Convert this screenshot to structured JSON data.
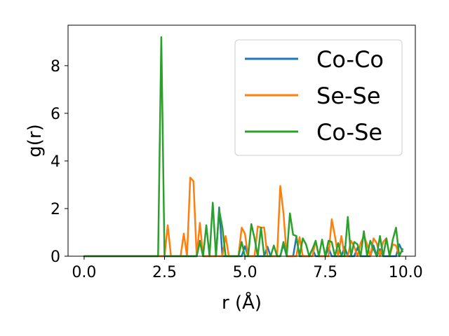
{
  "chart_data": {
    "type": "line",
    "xlabel": "r (Å)",
    "ylabel": "g(r)",
    "xlim": [
      -0.5,
      10.3
    ],
    "ylim": [
      0,
      9.7
    ],
    "xticks": [
      0.0,
      2.5,
      5.0,
      7.5,
      10.0
    ],
    "xtick_labels": [
      "0.0",
      "2.5",
      "5.0",
      "7.5",
      "10.0"
    ],
    "yticks": [
      0,
      2,
      4,
      6,
      8
    ],
    "ytick_labels": [
      "0",
      "2",
      "4",
      "6",
      "8"
    ],
    "grid": false,
    "legend_position": "top-right",
    "series": [
      {
        "name": "Co-Co",
        "color": "#1f77b4",
        "x": [
          0.0,
          3.5,
          3.6,
          3.7,
          4.1,
          4.2,
          4.3,
          4.4,
          4.9,
          5.0,
          5.1,
          5.6,
          5.7,
          5.8,
          6.1,
          6.2,
          6.3,
          6.5,
          6.6,
          6.7,
          7.0,
          7.1,
          7.2,
          7.5,
          7.6,
          7.7,
          8.0,
          8.1,
          8.2,
          8.4,
          8.5,
          8.6,
          8.9,
          9.0,
          9.1,
          9.2,
          9.3,
          9.4,
          9.7,
          9.8,
          9.9
        ],
        "y": [
          0.0,
          0.0,
          0.65,
          0.0,
          0.0,
          2.05,
          0.0,
          0.0,
          0.0,
          0.42,
          0.0,
          0.0,
          0.4,
          0.0,
          0.0,
          0.5,
          0.0,
          0.0,
          0.8,
          0.0,
          0.0,
          0.3,
          0.0,
          0.0,
          0.35,
          0.0,
          0.0,
          0.4,
          0.0,
          0.0,
          0.35,
          0.0,
          0.0,
          0.45,
          0.0,
          0.3,
          0.0,
          0.0,
          0.0,
          0.5,
          0.2
        ]
      },
      {
        "name": "Se-Se",
        "color": "#ff7f0e",
        "x": [
          0.0,
          2.5,
          2.6,
          2.7,
          3.0,
          3.1,
          3.2,
          3.3,
          3.4,
          3.5,
          3.6,
          3.7,
          4.3,
          4.4,
          4.5,
          4.8,
          4.9,
          5.0,
          5.1,
          5.3,
          5.4,
          5.5,
          5.6,
          5.7,
          5.8,
          6.0,
          6.1,
          6.2,
          6.3,
          6.6,
          6.7,
          6.8,
          7.1,
          7.2,
          7.3,
          7.6,
          7.7,
          7.8,
          7.9,
          8.0,
          8.1,
          8.2,
          8.3,
          8.4,
          8.5,
          8.6,
          8.7,
          8.8,
          8.9,
          9.0,
          9.1,
          9.2,
          9.3,
          9.4,
          9.5,
          9.6,
          9.7,
          9.8,
          9.9
        ],
        "y": [
          0.0,
          0.0,
          1.3,
          0.0,
          0.0,
          0.95,
          0.0,
          3.3,
          3.15,
          0.0,
          1.4,
          0.0,
          0.0,
          0.85,
          0.0,
          0.0,
          1.2,
          0.95,
          0.0,
          0.0,
          1.25,
          1.2,
          1.2,
          0.0,
          0.0,
          0.0,
          2.95,
          1.8,
          0.0,
          0.0,
          0.8,
          0.0,
          0.0,
          0.65,
          0.0,
          0.0,
          1.55,
          0.85,
          0.0,
          0.85,
          0.0,
          0.0,
          0.65,
          0.4,
          0.0,
          0.55,
          0.85,
          0.5,
          0.0,
          0.75,
          0.55,
          0.0,
          0.6,
          0.75,
          0.0,
          0.5,
          0.45,
          0.0,
          0.3
        ]
      },
      {
        "name": "Co-Se",
        "color": "#2ca02c",
        "x": [
          0.0,
          2.3,
          2.4,
          2.5,
          3.5,
          3.6,
          3.7,
          3.8,
          3.9,
          4.0,
          4.1,
          4.2,
          4.3,
          4.4,
          4.8,
          4.9,
          5.0,
          5.1,
          5.2,
          5.3,
          5.4,
          5.5,
          5.6,
          5.7,
          5.8,
          5.9,
          6.0,
          6.1,
          6.2,
          6.3,
          6.4,
          6.5,
          6.6,
          6.7,
          6.8,
          6.9,
          7.0,
          7.1,
          7.2,
          7.3,
          7.4,
          7.5,
          7.6,
          7.7,
          7.8,
          7.9,
          8.0,
          8.1,
          8.2,
          8.3,
          8.4,
          8.5,
          8.6,
          8.7,
          8.8,
          8.9,
          9.0,
          9.1,
          9.2,
          9.3,
          9.4,
          9.5,
          9.6,
          9.7,
          9.8,
          9.9
        ],
        "y": [
          0.0,
          0.0,
          9.2,
          0.0,
          0.0,
          0.6,
          0.0,
          1.3,
          0.0,
          2.25,
          0.0,
          1.95,
          1.2,
          0.0,
          0.0,
          0.6,
          0.0,
          0.0,
          1.35,
          0.75,
          0.0,
          1.2,
          0.0,
          0.0,
          0.0,
          0.45,
          0.0,
          0.0,
          0.6,
          0.0,
          1.8,
          0.9,
          0.85,
          0.0,
          0.75,
          0.5,
          0.0,
          0.3,
          0.65,
          0.0,
          0.7,
          0.0,
          0.65,
          0.6,
          0.0,
          0.55,
          0.0,
          0.0,
          1.65,
          0.0,
          0.6,
          0.5,
          0.0,
          1.05,
          0.0,
          0.65,
          0.3,
          0.0,
          0.85,
          0.0,
          0.75,
          0.0,
          0.7,
          1.2,
          0.0,
          0.3
        ]
      }
    ]
  }
}
